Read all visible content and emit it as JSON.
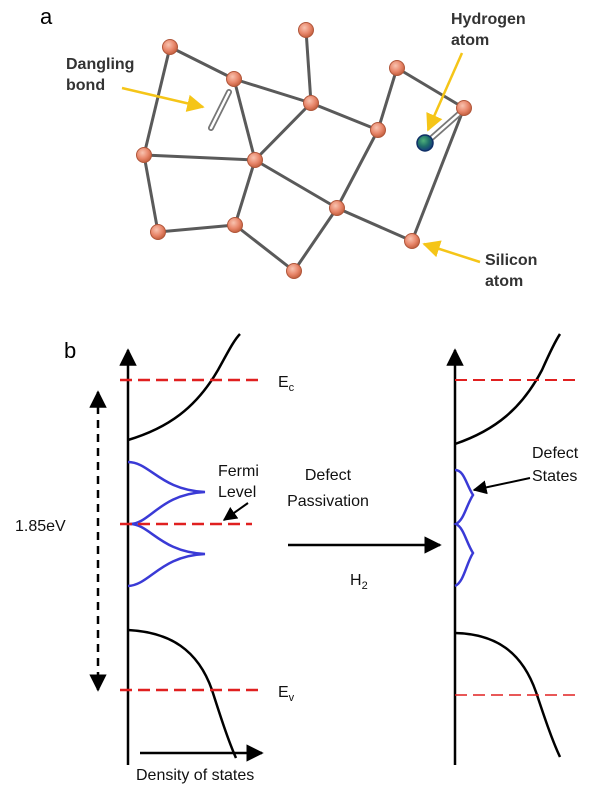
{
  "panel_a": {
    "label": "a",
    "dangling_bond_line1": "Dangling",
    "dangling_bond_line2": "bond",
    "hydrogen_line1": "Hydrogen",
    "hydrogen_line2": "atom",
    "silicon_line1": "Silicon",
    "silicon_line2": "atom"
  },
  "panel_b": {
    "label": "b",
    "gap_value": "1.85eV",
    "ec_main": "E",
    "ec_sub": "c",
    "ev_main": "E",
    "ev_sub": "v",
    "fermi_line1": "Fermi",
    "fermi_line2": "Level",
    "passivation_line1": "Defect",
    "passivation_line2": "Passivation",
    "h2_main": "H",
    "h2_sub": "2",
    "defect_states_line1": "Defect",
    "defect_states_line2": "States",
    "dos_label": "Density of states"
  },
  "colors": {
    "silicon_atom": "#e8866a",
    "hydrogen_atom": "#1b5a8a",
    "callout_arrow": "#f5c518",
    "level_dash": "#e02020",
    "defect_curve": "#3a3ad6"
  }
}
